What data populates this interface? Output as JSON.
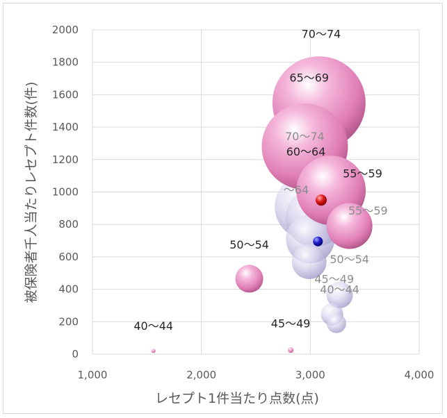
{
  "chart_data": {
    "type": "scatter",
    "xlabel": "レセプト1件当たり点数(点)",
    "ylabel": "被保険者千人当たりレセプト件数(件)",
    "xlim": [
      1000,
      4000
    ],
    "ylim": [
      0,
      2000
    ],
    "x_ticks": [
      "1,000",
      "2,000",
      "3,000",
      "4,000"
    ],
    "y_ticks": [
      "0",
      "200",
      "400",
      "600",
      "800",
      "1000",
      "1200",
      "1400",
      "1600",
      "1800",
      "2000"
    ],
    "grid": true,
    "colors": {
      "series_a": "#e07fb6",
      "series_b": "#c9c3e6",
      "marker_red": "#e01b1b",
      "marker_blue": "#1f1fd0",
      "label_dark": "#262626",
      "label_light": "#8c8c8c"
    },
    "series": [
      {
        "style": "pink",
        "points": [
          {
            "label": "40～44",
            "x": 1560,
            "y": 20,
            "size": 6
          },
          {
            "label": "45～49",
            "x": 2820,
            "y": 25,
            "size": 8
          },
          {
            "label": "50～54",
            "x": 2440,
            "y": 465,
            "size": 40
          },
          {
            "label": "55～59",
            "x": 3360,
            "y": 790,
            "size": 66
          },
          {
            "label": "60～64",
            "x": 3190,
            "y": 1010,
            "size": 100
          },
          {
            "label": "65～69",
            "x": 2950,
            "y": 1280,
            "size": 124
          },
          {
            "label": "70～74",
            "x": 3080,
            "y": 1550,
            "size": 134
          }
        ]
      },
      {
        "style": "lavender",
        "points": [
          {
            "label": "40～44",
            "x": 3240,
            "y": 190,
            "size": 28
          },
          {
            "label": "45～49",
            "x": 3200,
            "y": 245,
            "size": 32
          },
          {
            "label": "",
            "x": 3270,
            "y": 365,
            "size": 38
          },
          {
            "label": "50～54",
            "x": 2990,
            "y": 570,
            "size": 50
          },
          {
            "label": "55～59",
            "x": 3000,
            "y": 710,
            "size": 70
          },
          {
            "label": "60～64",
            "x": 3040,
            "y": 840,
            "size": 84
          },
          {
            "label": "70～74",
            "x": 2980,
            "y": 910,
            "size": 96
          }
        ]
      },
      {
        "style": "red",
        "points": [
          {
            "label": "",
            "x": 3100,
            "y": 950,
            "size": 16
          }
        ]
      },
      {
        "style": "blue",
        "points": [
          {
            "label": "",
            "x": 3070,
            "y": 695,
            "size": 14
          }
        ]
      }
    ],
    "annotations": [
      {
        "text": "70～74",
        "x": 3100,
        "y": 1950,
        "tone": "dark"
      },
      {
        "text": "65～69",
        "x": 2990,
        "y": 1680,
        "tone": "dark"
      },
      {
        "text": "70～74",
        "x": 2950,
        "y": 1320,
        "tone": "light"
      },
      {
        "text": "60～64",
        "x": 2960,
        "y": 1225,
        "tone": "dark"
      },
      {
        "text": "55～59",
        "x": 3480,
        "y": 1090,
        "tone": "dark"
      },
      {
        "text": "～64",
        "x": 2870,
        "y": 990,
        "tone": "light"
      },
      {
        "text": "55～59",
        "x": 3530,
        "y": 860,
        "tone": "light"
      },
      {
        "text": "50～54",
        "x": 2440,
        "y": 650,
        "tone": "dark"
      },
      {
        "text": "50～54",
        "x": 3360,
        "y": 560,
        "tone": "light"
      },
      {
        "text": "45～49",
        "x": 3220,
        "y": 440,
        "tone": "light"
      },
      {
        "text": "40～44",
        "x": 3270,
        "y": 375,
        "tone": "light"
      },
      {
        "text": "40～44",
        "x": 1560,
        "y": 150,
        "tone": "dark"
      },
      {
        "text": "45～49",
        "x": 2820,
        "y": 165,
        "tone": "dark"
      }
    ]
  }
}
